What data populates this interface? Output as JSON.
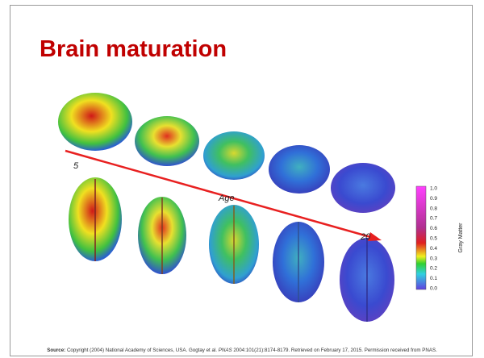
{
  "slide": {
    "title": "Brain maturation",
    "figure": {
      "start_label": "5",
      "axis_label": "Age",
      "end_label": "20",
      "colorbar_title": "Gray Matter",
      "colorbar_ticks": [
        "1.0",
        "0.9",
        "0.8",
        "0.7",
        "0.6",
        "0.5",
        "0.4",
        "0.3",
        "0.2",
        "0.1",
        "0.0"
      ]
    },
    "source": {
      "label": "Source:",
      "text_before": "Copyright (2004) National Academy of Sciences, USA. Gogtay et al.",
      "journal": "PNAS",
      "text_after": "2004:101(21):8174-8179. Retrieved on February 17, 2015. Permission received from PNAS."
    }
  }
}
